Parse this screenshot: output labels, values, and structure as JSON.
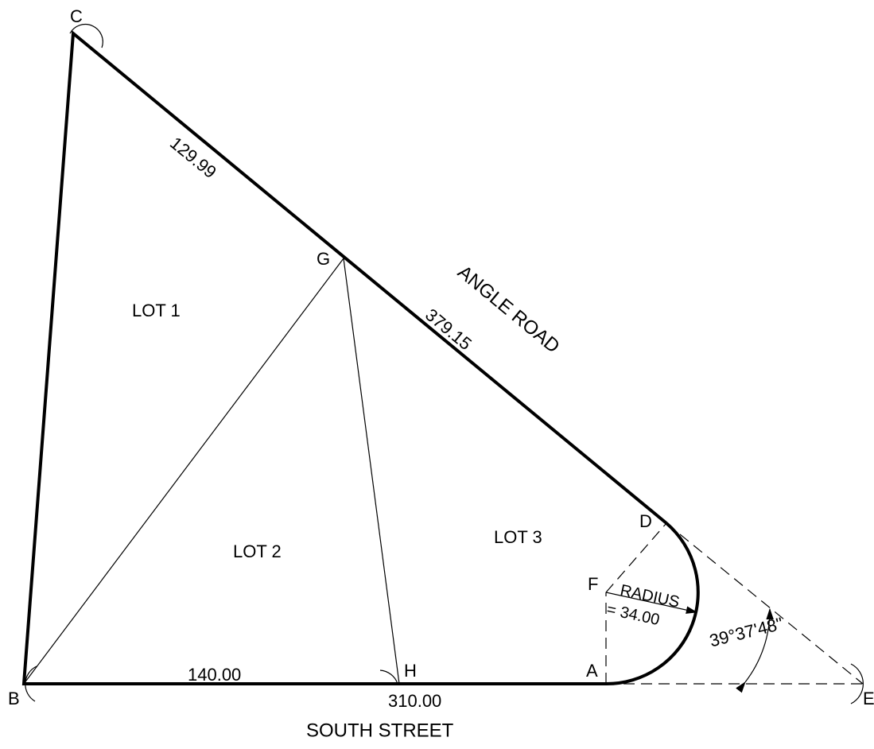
{
  "points": {
    "c": "C",
    "b": "B",
    "g": "G",
    "h": "H",
    "a": "A",
    "d": "D",
    "f": "F",
    "e": "E"
  },
  "lots": [
    "LOT 1",
    "LOT 2",
    "LOT 3"
  ],
  "dimensions": {
    "cg": "129.99",
    "gd": "379.15",
    "bh": "140.00",
    "be": "310.00",
    "radius_label": "RADIUS",
    "radius_value": "= 34.00",
    "angle": "39°37'48\""
  },
  "streets": {
    "road": "ANGLE ROAD",
    "street": "SOUTH STREET"
  }
}
